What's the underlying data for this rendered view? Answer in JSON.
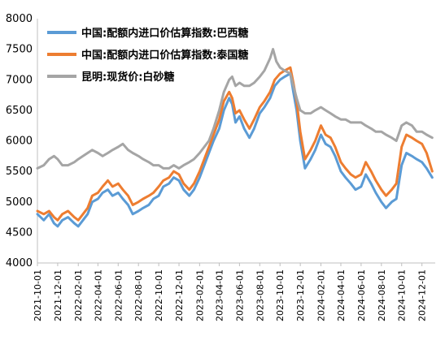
{
  "chart_data": {
    "type": "line",
    "title": "",
    "xlabel": "",
    "ylabel": "",
    "ylim": [
      4000,
      8000
    ],
    "yticks": [
      4000,
      4500,
      5000,
      5500,
      6000,
      6500,
      7000,
      7500,
      8000
    ],
    "xlim": [
      "2021-10-01",
      "2025-01-10"
    ],
    "xticks": [
      "2021-10-01",
      "2021-12-01",
      "2022-02-01",
      "2022-04-01",
      "2022-06-01",
      "2022-08-01",
      "2022-10-01",
      "2022-12-01",
      "2023-02-01",
      "2023-04-01",
      "2023-06-01",
      "2023-08-01",
      "2023-10-01",
      "2023-12-01",
      "2024-02-01",
      "2024-04-01",
      "2024-06-01",
      "2024-08-01",
      "2024-10-01",
      "2024-12-01"
    ],
    "grid": false,
    "legend": "top-left",
    "series": [
      {
        "name": "中国:配额内进口价估算指数:巴西糖",
        "color": "#5b9bd5",
        "points": [
          [
            "2021-10-01",
            4800
          ],
          [
            "2021-10-20",
            4700
          ],
          [
            "2021-11-05",
            4800
          ],
          [
            "2021-11-20",
            4650
          ],
          [
            "2021-12-01",
            4600
          ],
          [
            "2021-12-15",
            4700
          ],
          [
            "2022-01-01",
            4750
          ],
          [
            "2022-01-20",
            4650
          ],
          [
            "2022-02-01",
            4600
          ],
          [
            "2022-02-15",
            4700
          ],
          [
            "2022-03-01",
            4800
          ],
          [
            "2022-03-15",
            5000
          ],
          [
            "2022-04-01",
            5050
          ],
          [
            "2022-04-15",
            5150
          ],
          [
            "2022-05-01",
            5200
          ],
          [
            "2022-05-15",
            5100
          ],
          [
            "2022-06-01",
            5150
          ],
          [
            "2022-06-15",
            5050
          ],
          [
            "2022-07-01",
            4950
          ],
          [
            "2022-07-15",
            4800
          ],
          [
            "2022-08-01",
            4850
          ],
          [
            "2022-08-15",
            4900
          ],
          [
            "2022-09-01",
            4950
          ],
          [
            "2022-09-15",
            5050
          ],
          [
            "2022-10-01",
            5100
          ],
          [
            "2022-10-15",
            5250
          ],
          [
            "2022-11-01",
            5300
          ],
          [
            "2022-11-15",
            5400
          ],
          [
            "2022-12-01",
            5350
          ],
          [
            "2022-12-15",
            5200
          ],
          [
            "2023-01-01",
            5100
          ],
          [
            "2023-01-15",
            5200
          ],
          [
            "2023-02-01",
            5400
          ],
          [
            "2023-02-15",
            5600
          ],
          [
            "2023-03-01",
            5800
          ],
          [
            "2023-03-15",
            6000
          ],
          [
            "2023-04-01",
            6200
          ],
          [
            "2023-04-15",
            6500
          ],
          [
            "2023-05-01",
            6700
          ],
          [
            "2023-05-10",
            6600
          ],
          [
            "2023-05-20",
            6300
          ],
          [
            "2023-06-01",
            6400
          ],
          [
            "2023-06-15",
            6200
          ],
          [
            "2023-07-01",
            6050
          ],
          [
            "2023-07-15",
            6200
          ],
          [
            "2023-08-01",
            6450
          ],
          [
            "2023-08-15",
            6550
          ],
          [
            "2023-09-01",
            6700
          ],
          [
            "2023-09-15",
            6900
          ],
          [
            "2023-10-01",
            7000
          ],
          [
            "2023-10-15",
            7050
          ],
          [
            "2023-11-01",
            7100
          ],
          [
            "2023-11-10",
            6800
          ],
          [
            "2023-11-20",
            6500
          ],
          [
            "2023-12-01",
            6000
          ],
          [
            "2023-12-15",
            5550
          ],
          [
            "2024-01-01",
            5700
          ],
          [
            "2024-01-15",
            5850
          ],
          [
            "2024-02-01",
            6100
          ],
          [
            "2024-02-15",
            5950
          ],
          [
            "2024-03-01",
            5900
          ],
          [
            "2024-03-15",
            5750
          ],
          [
            "2024-04-01",
            5500
          ],
          [
            "2024-04-15",
            5400
          ],
          [
            "2024-05-01",
            5300
          ],
          [
            "2024-05-15",
            5200
          ],
          [
            "2024-06-01",
            5250
          ],
          [
            "2024-06-15",
            5450
          ],
          [
            "2024-07-01",
            5300
          ],
          [
            "2024-07-15",
            5150
          ],
          [
            "2024-08-01",
            5000
          ],
          [
            "2024-08-15",
            4900
          ],
          [
            "2024-09-01",
            5000
          ],
          [
            "2024-09-15",
            5050
          ],
          [
            "2024-10-01",
            5600
          ],
          [
            "2024-10-15",
            5800
          ],
          [
            "2024-11-01",
            5750
          ],
          [
            "2024-11-15",
            5700
          ],
          [
            "2024-12-01",
            5650
          ],
          [
            "2024-12-15",
            5550
          ],
          [
            "2025-01-01",
            5400
          ]
        ]
      },
      {
        "name": "中国:配额内进口价估算指数:泰国糖",
        "color": "#ed7d31",
        "points": [
          [
            "2021-10-01",
            4850
          ],
          [
            "2021-10-20",
            4800
          ],
          [
            "2021-11-05",
            4850
          ],
          [
            "2021-11-20",
            4750
          ],
          [
            "2021-12-01",
            4700
          ],
          [
            "2021-12-15",
            4800
          ],
          [
            "2022-01-01",
            4850
          ],
          [
            "2022-01-20",
            4750
          ],
          [
            "2022-02-01",
            4700
          ],
          [
            "2022-02-15",
            4800
          ],
          [
            "2022-03-01",
            4900
          ],
          [
            "2022-03-15",
            5100
          ],
          [
            "2022-04-01",
            5150
          ],
          [
            "2022-04-15",
            5250
          ],
          [
            "2022-05-01",
            5350
          ],
          [
            "2022-05-15",
            5250
          ],
          [
            "2022-06-01",
            5300
          ],
          [
            "2022-06-15",
            5200
          ],
          [
            "2022-07-01",
            5100
          ],
          [
            "2022-07-15",
            4950
          ],
          [
            "2022-08-01",
            5000
          ],
          [
            "2022-08-15",
            5050
          ],
          [
            "2022-09-01",
            5100
          ],
          [
            "2022-09-15",
            5150
          ],
          [
            "2022-10-01",
            5250
          ],
          [
            "2022-10-15",
            5350
          ],
          [
            "2022-11-01",
            5400
          ],
          [
            "2022-11-15",
            5500
          ],
          [
            "2022-12-01",
            5450
          ],
          [
            "2022-12-15",
            5300
          ],
          [
            "2023-01-01",
            5200
          ],
          [
            "2023-01-15",
            5300
          ],
          [
            "2023-02-01",
            5500
          ],
          [
            "2023-02-15",
            5700
          ],
          [
            "2023-03-01",
            5900
          ],
          [
            "2023-03-15",
            6100
          ],
          [
            "2023-04-01",
            6350
          ],
          [
            "2023-04-15",
            6650
          ],
          [
            "2023-05-01",
            6800
          ],
          [
            "2023-05-10",
            6700
          ],
          [
            "2023-05-20",
            6450
          ],
          [
            "2023-06-01",
            6500
          ],
          [
            "2023-06-15",
            6350
          ],
          [
            "2023-07-01",
            6200
          ],
          [
            "2023-07-15",
            6350
          ],
          [
            "2023-08-01",
            6550
          ],
          [
            "2023-08-15",
            6650
          ],
          [
            "2023-09-01",
            6800
          ],
          [
            "2023-09-15",
            7000
          ],
          [
            "2023-10-01",
            7100
          ],
          [
            "2023-10-15",
            7150
          ],
          [
            "2023-11-01",
            7200
          ],
          [
            "2023-11-10",
            6950
          ],
          [
            "2023-11-20",
            6650
          ],
          [
            "2023-12-01",
            6150
          ],
          [
            "2023-12-15",
            5700
          ],
          [
            "2024-01-01",
            5850
          ],
          [
            "2024-01-15",
            6000
          ],
          [
            "2024-02-01",
            6250
          ],
          [
            "2024-02-15",
            6100
          ],
          [
            "2024-03-01",
            6050
          ],
          [
            "2024-03-15",
            5900
          ],
          [
            "2024-04-01",
            5650
          ],
          [
            "2024-04-15",
            5550
          ],
          [
            "2024-05-01",
            5450
          ],
          [
            "2024-05-15",
            5400
          ],
          [
            "2024-06-01",
            5450
          ],
          [
            "2024-06-15",
            5650
          ],
          [
            "2024-07-01",
            5500
          ],
          [
            "2024-07-15",
            5350
          ],
          [
            "2024-08-01",
            5200
          ],
          [
            "2024-08-15",
            5100
          ],
          [
            "2024-09-01",
            5200
          ],
          [
            "2024-09-15",
            5300
          ],
          [
            "2024-10-01",
            5900
          ],
          [
            "2024-10-15",
            6100
          ],
          [
            "2024-11-01",
            6050
          ],
          [
            "2024-11-15",
            6000
          ],
          [
            "2024-12-01",
            5950
          ],
          [
            "2024-12-15",
            5800
          ],
          [
            "2025-01-01",
            5500
          ]
        ]
      },
      {
        "name": "昆明:现货价:白砂糖",
        "color": "#a5a5a5",
        "points": [
          [
            "2021-10-01",
            5550
          ],
          [
            "2021-10-20",
            5600
          ],
          [
            "2021-11-05",
            5700
          ],
          [
            "2021-11-20",
            5750
          ],
          [
            "2021-12-01",
            5700
          ],
          [
            "2021-12-15",
            5600
          ],
          [
            "2022-01-01",
            5600
          ],
          [
            "2022-01-20",
            5650
          ],
          [
            "2022-02-01",
            5700
          ],
          [
            "2022-02-15",
            5750
          ],
          [
            "2022-03-01",
            5800
          ],
          [
            "2022-03-15",
            5850
          ],
          [
            "2022-04-01",
            5800
          ],
          [
            "2022-04-15",
            5750
          ],
          [
            "2022-05-01",
            5800
          ],
          [
            "2022-05-15",
            5850
          ],
          [
            "2022-06-01",
            5900
          ],
          [
            "2022-06-15",
            5950
          ],
          [
            "2022-07-01",
            5850
          ],
          [
            "2022-07-15",
            5800
          ],
          [
            "2022-08-01",
            5750
          ],
          [
            "2022-08-15",
            5700
          ],
          [
            "2022-09-01",
            5650
          ],
          [
            "2022-09-15",
            5600
          ],
          [
            "2022-10-01",
            5600
          ],
          [
            "2022-10-15",
            5550
          ],
          [
            "2022-11-01",
            5550
          ],
          [
            "2022-11-15",
            5600
          ],
          [
            "2022-12-01",
            5550
          ],
          [
            "2022-12-15",
            5600
          ],
          [
            "2023-01-01",
            5650
          ],
          [
            "2023-01-15",
            5700
          ],
          [
            "2023-02-01",
            5800
          ],
          [
            "2023-02-15",
            5900
          ],
          [
            "2023-03-01",
            6000
          ],
          [
            "2023-03-15",
            6200
          ],
          [
            "2023-04-01",
            6500
          ],
          [
            "2023-04-15",
            6800
          ],
          [
            "2023-05-01",
            7000
          ],
          [
            "2023-05-10",
            7050
          ],
          [
            "2023-05-20",
            6900
          ],
          [
            "2023-06-01",
            6950
          ],
          [
            "2023-06-15",
            6900
          ],
          [
            "2023-07-01",
            6900
          ],
          [
            "2023-07-15",
            6950
          ],
          [
            "2023-08-01",
            7050
          ],
          [
            "2023-08-15",
            7150
          ],
          [
            "2023-09-01",
            7350
          ],
          [
            "2023-09-10",
            7500
          ],
          [
            "2023-09-20",
            7300
          ],
          [
            "2023-10-01",
            7200
          ],
          [
            "2023-10-15",
            7150
          ],
          [
            "2023-11-01",
            7100
          ],
          [
            "2023-11-10",
            6900
          ],
          [
            "2023-11-20",
            6700
          ],
          [
            "2023-12-01",
            6500
          ],
          [
            "2023-12-15",
            6450
          ],
          [
            "2024-01-01",
            6450
          ],
          [
            "2024-01-15",
            6500
          ],
          [
            "2024-02-01",
            6550
          ],
          [
            "2024-02-15",
            6500
          ],
          [
            "2024-03-01",
            6450
          ],
          [
            "2024-03-15",
            6400
          ],
          [
            "2024-04-01",
            6350
          ],
          [
            "2024-04-15",
            6350
          ],
          [
            "2024-05-01",
            6300
          ],
          [
            "2024-05-15",
            6300
          ],
          [
            "2024-06-01",
            6300
          ],
          [
            "2024-06-15",
            6250
          ],
          [
            "2024-07-01",
            6200
          ],
          [
            "2024-07-15",
            6150
          ],
          [
            "2024-08-01",
            6150
          ],
          [
            "2024-08-15",
            6100
          ],
          [
            "2024-09-01",
            6050
          ],
          [
            "2024-09-15",
            6000
          ],
          [
            "2024-10-01",
            6250
          ],
          [
            "2024-10-15",
            6300
          ],
          [
            "2024-11-01",
            6250
          ],
          [
            "2024-11-15",
            6150
          ],
          [
            "2024-12-01",
            6150
          ],
          [
            "2024-12-15",
            6100
          ],
          [
            "2025-01-01",
            6050
          ]
        ]
      }
    ]
  }
}
